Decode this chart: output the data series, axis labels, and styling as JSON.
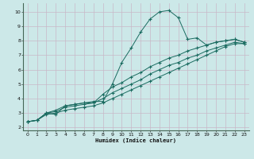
{
  "xlabel": "Humidex (Indice chaleur)",
  "bg_color": "#cce8e8",
  "line_color": "#1a6b60",
  "grid_color": "#aacece",
  "xlim": [
    -0.5,
    23.5
  ],
  "ylim": [
    1.8,
    10.6
  ],
  "xticks": [
    0,
    1,
    2,
    3,
    4,
    5,
    6,
    7,
    8,
    9,
    10,
    11,
    12,
    13,
    14,
    15,
    16,
    17,
    18,
    19,
    20,
    21,
    22,
    23
  ],
  "yticks": [
    2,
    3,
    4,
    5,
    6,
    7,
    8,
    9,
    10
  ],
  "lines": [
    [
      2.4,
      2.5,
      3.0,
      2.9,
      3.5,
      3.6,
      3.7,
      3.8,
      3.8,
      5.0,
      6.5,
      7.5,
      8.6,
      9.5,
      10.0,
      10.1,
      9.6,
      8.1,
      8.2,
      7.7,
      7.9,
      8.0,
      8.1,
      7.9
    ],
    [
      2.4,
      2.5,
      3.0,
      3.2,
      3.5,
      3.6,
      3.7,
      3.7,
      4.3,
      4.8,
      5.1,
      5.5,
      5.8,
      6.2,
      6.5,
      6.8,
      7.0,
      7.3,
      7.5,
      7.7,
      7.9,
      8.0,
      8.1,
      7.9
    ],
    [
      2.4,
      2.5,
      3.0,
      3.1,
      3.4,
      3.5,
      3.6,
      3.7,
      4.0,
      4.4,
      4.7,
      5.0,
      5.3,
      5.7,
      6.0,
      6.3,
      6.5,
      6.8,
      7.0,
      7.3,
      7.5,
      7.7,
      7.9,
      7.8
    ],
    [
      2.4,
      2.5,
      2.9,
      3.0,
      3.2,
      3.3,
      3.4,
      3.5,
      3.7,
      4.0,
      4.3,
      4.6,
      4.9,
      5.2,
      5.5,
      5.8,
      6.1,
      6.4,
      6.7,
      7.0,
      7.3,
      7.6,
      7.8,
      7.8
    ]
  ],
  "figsize": [
    3.2,
    2.0
  ],
  "dpi": 100
}
